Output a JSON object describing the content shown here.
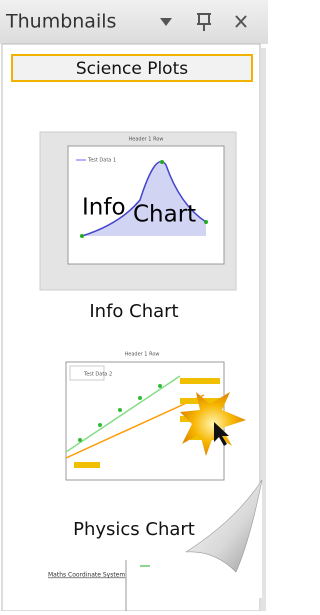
{
  "panel": {
    "title": "Thumbnails",
    "group": "Science Plots",
    "items": [
      {
        "label": "Info Chart",
        "thumb_header": "Header 1 Row",
        "thumb_legend": "Test Data 1",
        "overlay": [
          "Info",
          "Chart"
        ]
      },
      {
        "label": "Physics Chart",
        "thumb_header": "Header 1 Row",
        "thumb_legend": "Test Data 2"
      },
      {
        "thumb_header": "Maths Coordinate System"
      }
    ]
  }
}
